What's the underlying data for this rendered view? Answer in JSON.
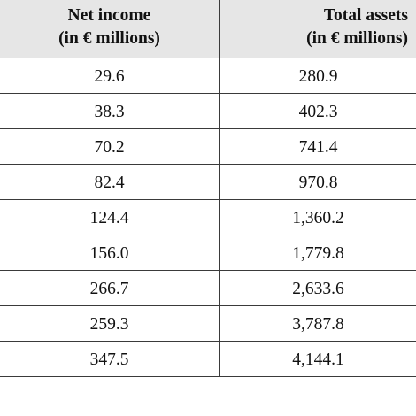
{
  "table": {
    "headers": [
      {
        "line1": "Net income",
        "line2": "(in € millions)"
      },
      {
        "line1": "Total assets",
        "line2": "(in € millions)"
      }
    ],
    "rows": [
      [
        "29.6",
        "280.9"
      ],
      [
        "38.3",
        "402.3"
      ],
      [
        "70.2",
        "741.4"
      ],
      [
        "82.4",
        "970.8"
      ],
      [
        "124.4",
        "1,360.2"
      ],
      [
        "156.0",
        "1,779.8"
      ],
      [
        "266.7",
        "2,633.6"
      ],
      [
        "259.3",
        "3,787.8"
      ],
      [
        "347.5",
        "4,144.1"
      ]
    ]
  }
}
